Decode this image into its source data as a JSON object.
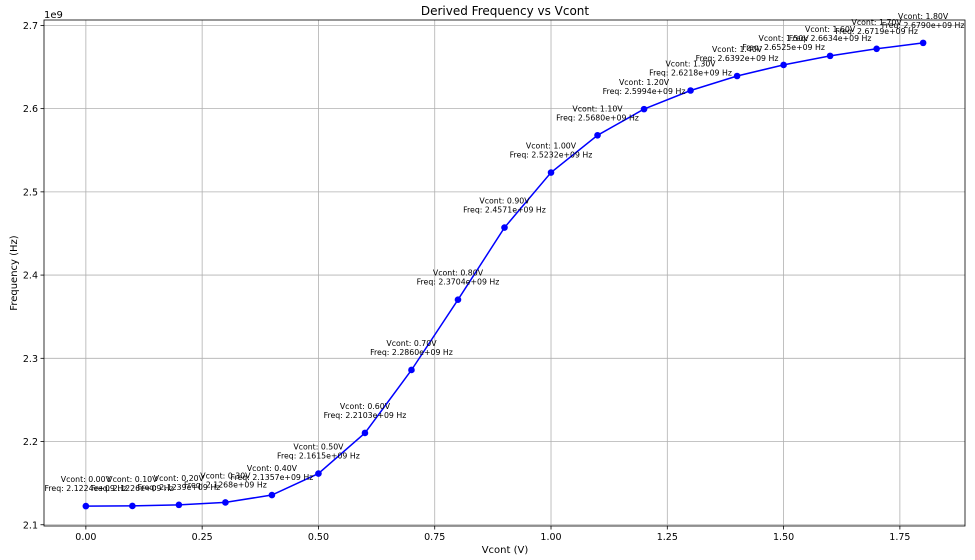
{
  "chart_data": {
    "type": "line",
    "title": "Derived Frequency vs Vcont",
    "xlabel": "Vcont (V)",
    "ylabel": "Frequency (Hz)",
    "y_offset_label": "1e9",
    "xlim": [
      -0.09,
      1.89
    ],
    "ylim": [
      2.0985,
      2.7065
    ],
    "x_ticks": [
      0.0,
      0.25,
      0.5,
      0.75,
      1.0,
      1.25,
      1.5,
      1.75
    ],
    "x_tick_labels": [
      "0.00",
      "0.25",
      "0.50",
      "0.75",
      "1.00",
      "1.25",
      "1.50",
      "1.75"
    ],
    "y_ticks": [
      2.1,
      2.2,
      2.3,
      2.4,
      2.5,
      2.6,
      2.7
    ],
    "y_tick_labels": [
      "2.1",
      "2.2",
      "2.3",
      "2.4",
      "2.5",
      "2.6",
      "2.7"
    ],
    "grid": true,
    "color": "#0000ff",
    "x": [
      0.0,
      0.1,
      0.2,
      0.3,
      0.4,
      0.5,
      0.6,
      0.7,
      0.8,
      0.9,
      1.0,
      1.1,
      1.2,
      1.3,
      1.4,
      1.5,
      1.6,
      1.7,
      1.8
    ],
    "y": [
      2.1224,
      2.1226,
      2.1239,
      2.1268,
      2.1357,
      2.1615,
      2.2103,
      2.286,
      2.3704,
      2.4571,
      2.5232,
      2.568,
      2.5994,
      2.6218,
      2.6392,
      2.6525,
      2.6634,
      2.6719,
      2.679
    ],
    "annotations": [
      [
        "Vcont: 0.00V",
        "Freq: 2.1224e+09 Hz"
      ],
      [
        "Vcont: 0.10V",
        "Freq: 2.1226e+09 Hz"
      ],
      [
        "Vcont: 0.20V",
        "Freq: 2.1239e+09 Hz"
      ],
      [
        "Vcont: 0.30V",
        "Freq: 2.1268e+09 Hz"
      ],
      [
        "Vcont: 0.40V",
        "Freq: 2.1357e+09 Hz"
      ],
      [
        "Vcont: 0.50V",
        "Freq: 2.1615e+09 Hz"
      ],
      [
        "Vcont: 0.60V",
        "Freq: 2.2103e+09 Hz"
      ],
      [
        "Vcont: 0.70V",
        "Freq: 2.2860e+09 Hz"
      ],
      [
        "Vcont: 0.80V",
        "Freq: 2.3704e+09 Hz"
      ],
      [
        "Vcont: 0.90V",
        "Freq: 2.4571e+09 Hz"
      ],
      [
        "Vcont: 1.00V",
        "Freq: 2.5232e+09 Hz"
      ],
      [
        "Vcont: 1.10V",
        "Freq: 2.5680e+09 Hz"
      ],
      [
        "Vcont: 1.20V",
        "Freq: 2.5994e+09 Hz"
      ],
      [
        "Vcont: 1.30V",
        "Freq: 2.6218e+09 Hz"
      ],
      [
        "Vcont: 1.40V",
        "Freq: 2.6392e+09 Hz"
      ],
      [
        "Vcont: 1.50V",
        "Freq: 2.6525e+09 Hz"
      ],
      [
        "Vcont: 1.60V",
        "Freq: 2.6634e+09 Hz"
      ],
      [
        "Vcont: 1.70V",
        "Freq: 2.6719e+09 Hz"
      ],
      [
        "Vcont: 1.80V",
        "Freq: 2.6790e+09 Hz"
      ]
    ]
  }
}
